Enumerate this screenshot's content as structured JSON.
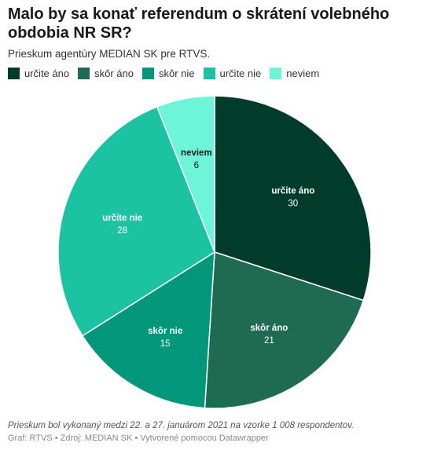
{
  "colors": {
    "urcite_ano": "#003c29",
    "skor_ano": "#1e6b52",
    "skor_nie": "#02967a",
    "urcite_nie": "#1bc3a3",
    "neviem": "#6ef5d9"
  },
  "chart_data": {
    "type": "pie",
    "title": "Malo by sa konať referendum o skrátení volebného obdobia NR SR?",
    "subtitle": "Prieskum agentúry MEDIAN SK pre RTVS.",
    "legend_position": "top-left",
    "slices": [
      {
        "label": "určite áno",
        "value": 30,
        "color": "#003c29"
      },
      {
        "label": "skôr áno",
        "value": 21,
        "color": "#1e6b52"
      },
      {
        "label": "skôr nie",
        "value": 15,
        "color": "#02967a"
      },
      {
        "label": "určite nie",
        "value": 28,
        "color": "#1bc3a3"
      },
      {
        "label": "neviem",
        "value": 6,
        "color": "#6ef5d9"
      }
    ]
  },
  "footnote": "Prieskum bol vykonaný medzi 22. a 27. januárom 2021 na vzorke 1 008 respondentov.",
  "credit": "Graf: RTVS • Zdroj: MEDIAN SK • Vytvorené pomocou Datawrapper"
}
